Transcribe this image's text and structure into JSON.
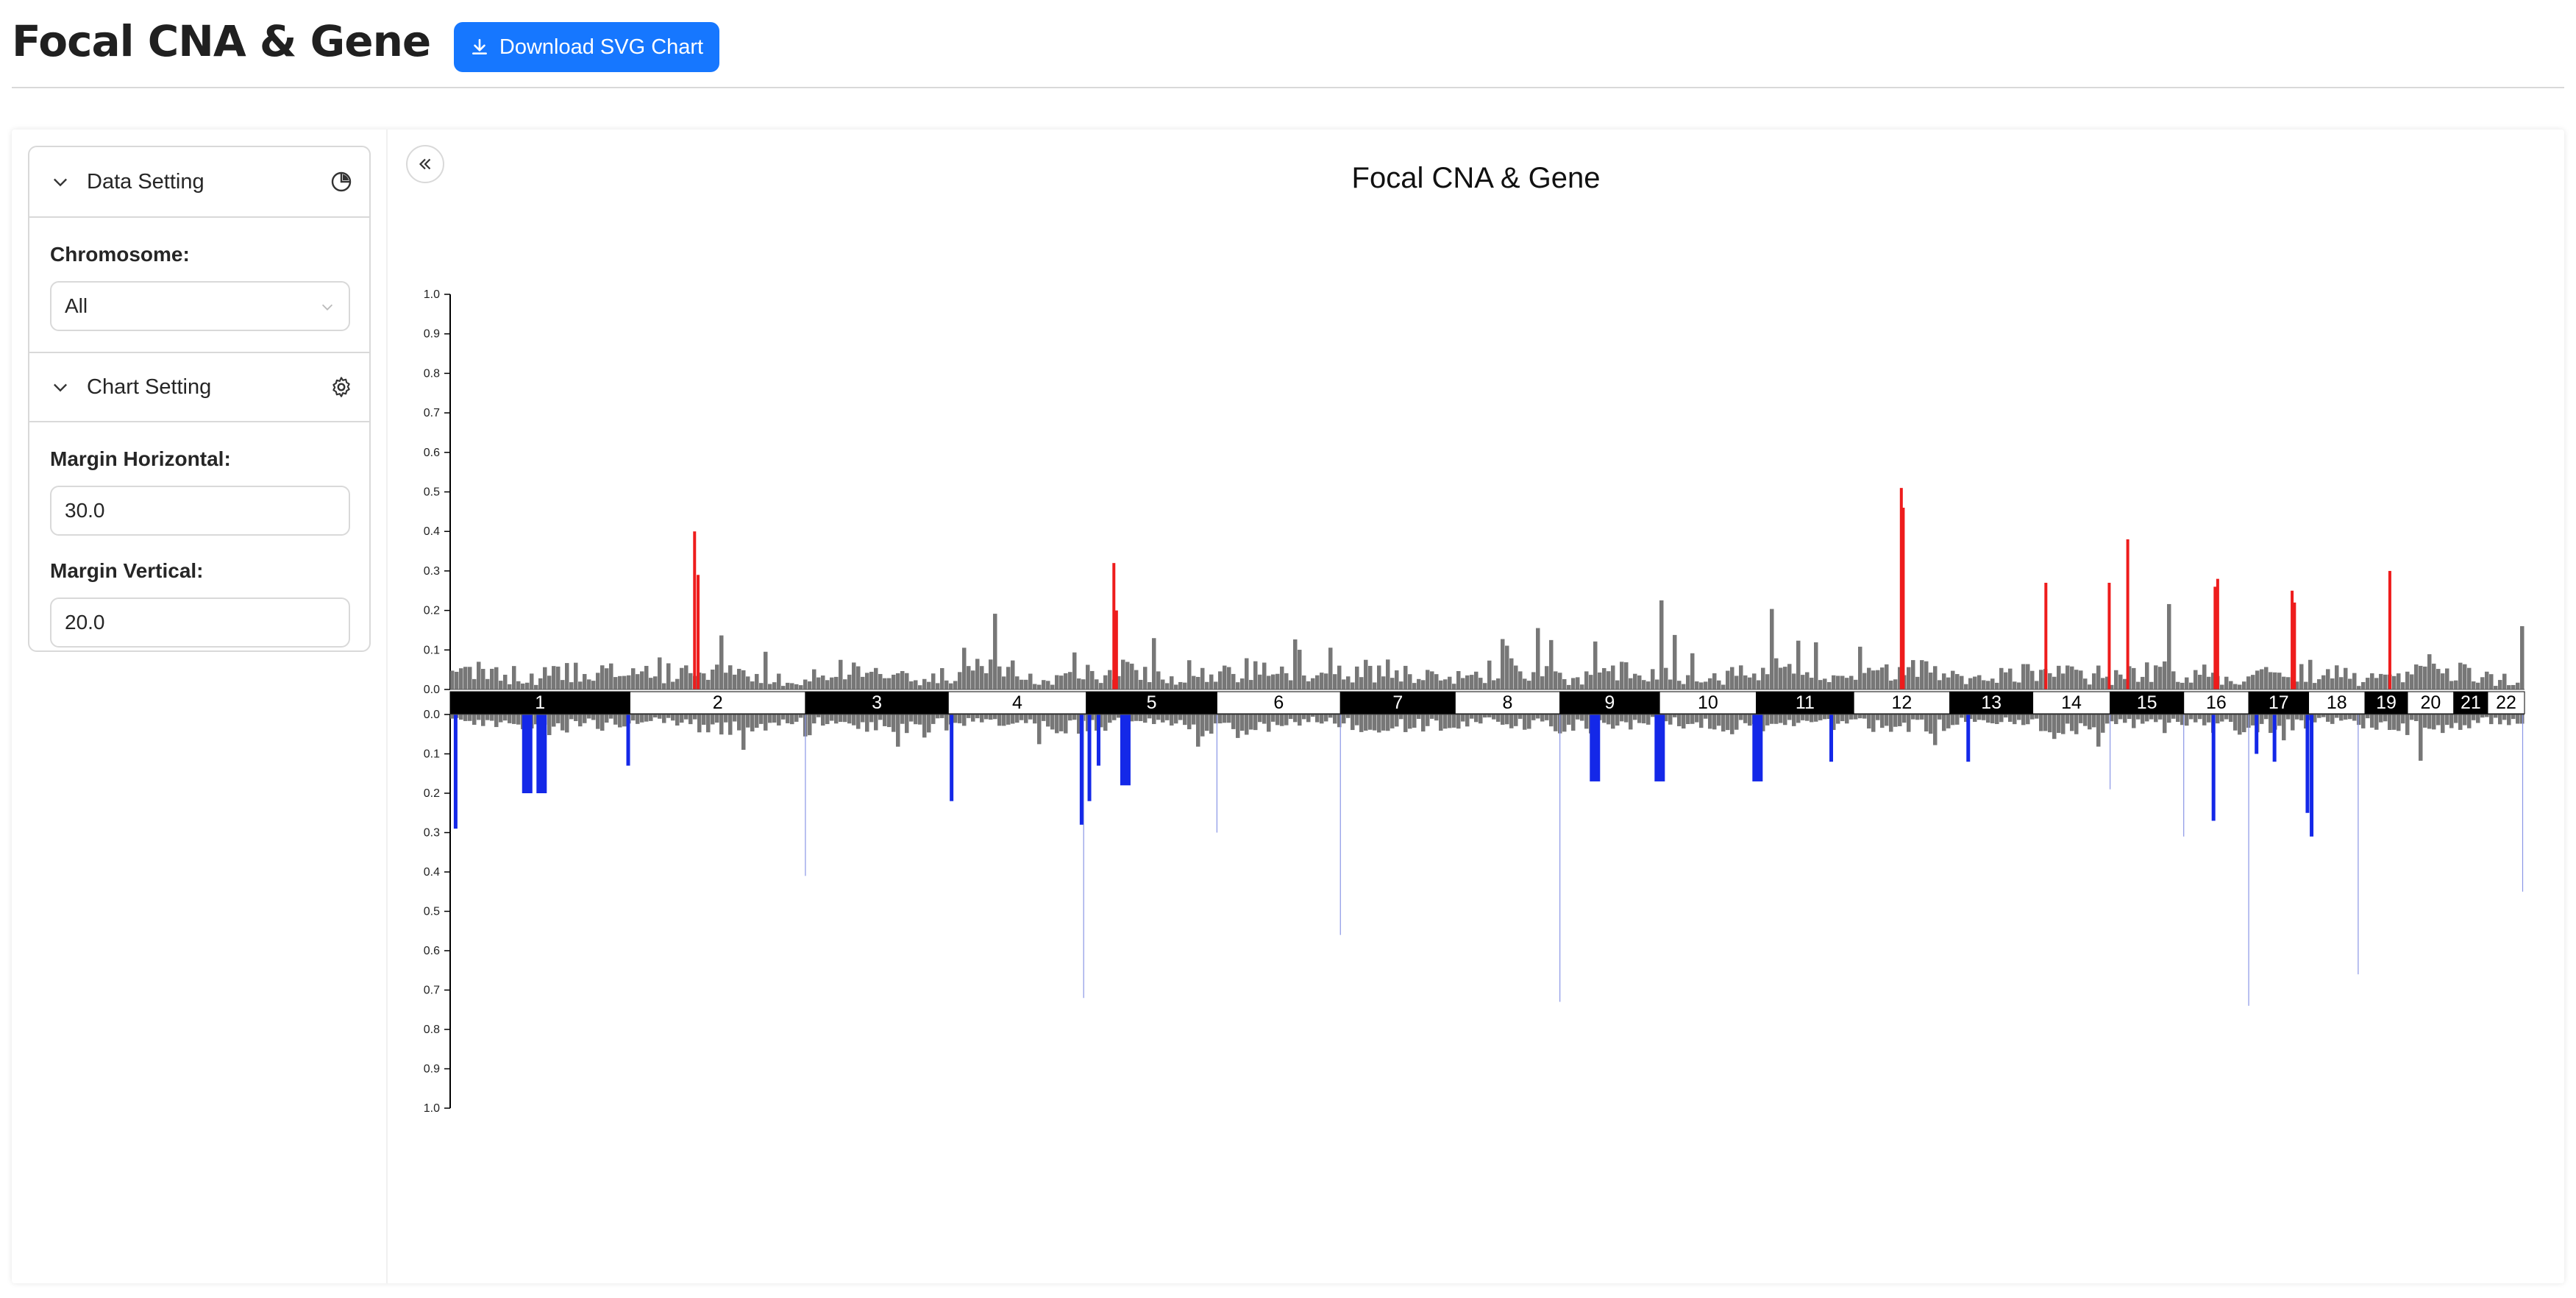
{
  "header": {
    "title": "Focal CNA & Gene",
    "download_label": "Download SVG Chart"
  },
  "sidebar": {
    "data_setting": {
      "label": "Data Setting",
      "chromosome_label": "Chromosome:",
      "chromosome_value": "All"
    },
    "chart_setting": {
      "label": "Chart Setting",
      "margin_horizontal_label": "Margin Horizontal:",
      "margin_horizontal_value": "30.0",
      "margin_vertical_label": "Margin Vertical:",
      "margin_vertical_value": "20.0"
    }
  },
  "chart_data": {
    "type": "bar",
    "title": "Focal CNA & Gene",
    "y_ticks": [
      "0.0",
      "0.1",
      "0.2",
      "0.3",
      "0.4",
      "0.5",
      "0.6",
      "0.7",
      "0.8",
      "0.9",
      "1.0"
    ],
    "ylim_amp": [
      0,
      1.0
    ],
    "ylim_del": [
      0,
      1.0
    ],
    "colors": {
      "amp_highlight": "#ee1c1c",
      "del_highlight": "#1428e8",
      "background_bar": "#777777",
      "band_dark": "#000000",
      "band_light": "#ffffff"
    },
    "chromosomes": [
      {
        "name": "1",
        "size": 249
      },
      {
        "name": "2",
        "size": 243
      },
      {
        "name": "3",
        "size": 198
      },
      {
        "name": "4",
        "size": 191
      },
      {
        "name": "5",
        "size": 181
      },
      {
        "name": "6",
        "size": 171
      },
      {
        "name": "7",
        "size": 159
      },
      {
        "name": "8",
        "size": 145
      },
      {
        "name": "9",
        "size": 138
      },
      {
        "name": "10",
        "size": 134
      },
      {
        "name": "11",
        "size": 135
      },
      {
        "name": "12",
        "size": 133
      },
      {
        "name": "13",
        "size": 115
      },
      {
        "name": "14",
        "size": 107
      },
      {
        "name": "15",
        "size": 102
      },
      {
        "name": "16",
        "size": 90
      },
      {
        "name": "17",
        "size": 83
      },
      {
        "name": "18",
        "size": 78
      },
      {
        "name": "19",
        "size": 59
      },
      {
        "name": "20",
        "size": 64
      },
      {
        "name": "21",
        "size": 47
      },
      {
        "name": "22",
        "size": 51
      }
    ],
    "amplification_peaks": [
      {
        "chr": "2",
        "pos": 0.36,
        "value": 0.4
      },
      {
        "chr": "2",
        "pos": 0.38,
        "value": 0.29
      },
      {
        "chr": "5",
        "pos": 0.2,
        "value": 0.32
      },
      {
        "chr": "5",
        "pos": 0.22,
        "value": 0.2
      },
      {
        "chr": "12",
        "pos": 0.48,
        "value": 0.51
      },
      {
        "chr": "12",
        "pos": 0.5,
        "value": 0.46
      },
      {
        "chr": "14",
        "pos": 0.15,
        "value": 0.27
      },
      {
        "chr": "14",
        "pos": 0.97,
        "value": 0.27
      },
      {
        "chr": "15",
        "pos": 0.22,
        "value": 0.38
      },
      {
        "chr": "16",
        "pos": 0.46,
        "value": 0.26
      },
      {
        "chr": "16",
        "pos": 0.5,
        "value": 0.28
      },
      {
        "chr": "17",
        "pos": 0.7,
        "value": 0.25
      },
      {
        "chr": "17",
        "pos": 0.74,
        "value": 0.22
      },
      {
        "chr": "19",
        "pos": 0.55,
        "value": 0.3
      }
    ],
    "deletion_peaks": [
      {
        "chr": "1",
        "pos": 0.02,
        "value": 0.29
      },
      {
        "chr": "1",
        "pos": 0.4,
        "value": 0.2
      },
      {
        "chr": "1",
        "pos": 0.48,
        "value": 0.2
      },
      {
        "chr": "1",
        "pos": 0.98,
        "value": 0.13
      },
      {
        "chr": "4",
        "pos": 0.01,
        "value": 0.22
      },
      {
        "chr": "5",
        "pos": -0.05,
        "value": 0.28
      },
      {
        "chr": "5",
        "pos": 0.01,
        "value": 0.22
      },
      {
        "chr": "5",
        "pos": 0.08,
        "value": 0.13
      },
      {
        "chr": "5",
        "pos": 0.26,
        "value": 0.18
      },
      {
        "chr": "9",
        "pos": 0.3,
        "value": 0.17
      },
      {
        "chr": "9",
        "pos": 0.95,
        "value": 0.17
      },
      {
        "chr": "11",
        "pos": -0.04,
        "value": 0.17
      },
      {
        "chr": "11",
        "pos": 0.75,
        "value": 0.12
      },
      {
        "chr": "13",
        "pos": 0.2,
        "value": 0.12
      },
      {
        "chr": "16",
        "pos": 0.43,
        "value": 0.27
      },
      {
        "chr": "17",
        "pos": 0.1,
        "value": 0.1
      },
      {
        "chr": "17",
        "pos": 0.4,
        "value": 0.12
      },
      {
        "chr": "17",
        "pos": 0.95,
        "value": 0.25
      },
      {
        "chr": "18",
        "pos": 0.02,
        "value": 0.31
      }
    ],
    "faint_lines": [
      {
        "chr": "3",
        "pos": 0.0,
        "value": 0.41
      },
      {
        "chr": "5",
        "pos": -0.02,
        "value": 0.72
      },
      {
        "chr": "6",
        "pos": 0.0,
        "value": 0.3
      },
      {
        "chr": "7",
        "pos": 0.0,
        "value": 0.56
      },
      {
        "chr": "9",
        "pos": 0.0,
        "value": 0.73
      },
      {
        "chr": "15",
        "pos": 0.0,
        "value": 0.19
      },
      {
        "chr": "16",
        "pos": 0.0,
        "value": 0.31
      },
      {
        "chr": "17",
        "pos": 0.0,
        "value": 0.74
      },
      {
        "chr": "18",
        "pos": 0.88,
        "value": 0.66
      },
      {
        "chr": "22",
        "pos": 0.95,
        "value": 0.45
      }
    ]
  }
}
